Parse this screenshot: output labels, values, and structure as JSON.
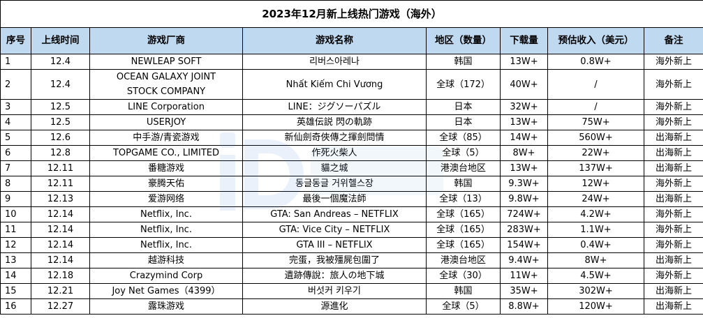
{
  "title": "2023年12月新上线热门游戏（海外）",
  "headers": [
    "序号",
    "上线时间",
    "游戏厂商",
    "游戏名称",
    "地区（数量）",
    "下载量",
    "预估收入（美元）",
    "备注"
  ],
  "rows": [
    [
      "1",
      "12.4",
      "NEWLEAP SOFT",
      "리버스아레나",
      "韩国",
      "13W+",
      "0.8W+",
      "海外新上"
    ],
    [
      "2",
      "12.4",
      "OCEAN GALAXY JOINT STOCK COMPANY",
      "Nhất Kiếm Chi Vương",
      "全球（172）",
      "40W+",
      "/",
      "海外新上"
    ],
    [
      "3",
      "12.5",
      "LINE Corporation",
      "LINE：ジグソーパズル",
      "日本",
      "32W+",
      "/",
      "海外新上"
    ],
    [
      "4",
      "12.5",
      "USERJOY",
      "英雄伝説 閃の軌跡",
      "日本",
      "13W+",
      "75W+",
      "海外新上"
    ],
    [
      "5",
      "12.6",
      "中手游/青瓷游戏",
      "新仙劍奇俠傳之揮劍問情",
      "全球（85）",
      "14W+",
      "560W+",
      "出海新上"
    ],
    [
      "6",
      "12.8",
      "TOPGAME CO., LIMITED",
      "作死火柴人",
      "全球（5）",
      "8W+",
      "22W+",
      "出海新上"
    ],
    [
      "7",
      "12.11",
      "番糖游戏",
      "貓之城",
      "港澳台地区",
      "13W+",
      "137W+",
      "出海新上"
    ],
    [
      "8",
      "12.11",
      "豪腾天佑",
      "동글동글 거위헬스장",
      "韩国",
      "9.3W+",
      "12W+",
      "海外新上"
    ],
    [
      "9",
      "12.13",
      "爱游网络",
      "最後一個魔法師",
      "全球（13）",
      "9.8W+",
      "24W+",
      "出海新上"
    ],
    [
      "10",
      "12.14",
      "Netflix, Inc.",
      "GTA: San Andreas – NETFLIX",
      "全球（165）",
      "724W+",
      "4.2W+",
      "海外新上"
    ],
    [
      "11",
      "12.14",
      "Netflix, Inc.",
      "GTA: Vice City – NETFLIX",
      "全球（165）",
      "283W+",
      "1.1W+",
      "海外新上"
    ],
    [
      "12",
      "12.14",
      "Netflix, Inc.",
      "GTA III – NETFLIX",
      "全球（165）",
      "154W+",
      "0.4W+",
      "海外新上"
    ],
    [
      "13",
      "12.14",
      "越游科技",
      "完蛋，我被殭屍包圍了",
      "港澳台地区",
      "9.4W+",
      "8W+",
      "出海新上"
    ],
    [
      "14",
      "12.18",
      "Crazymind Corp",
      "遺跡傳說：旅人の地下城",
      "全球（30）",
      "11W+",
      "4.5W+",
      "海外新上"
    ],
    [
      "15",
      "12.21",
      "Joy Net Games（4399）",
      "버섯커 키우기",
      "韩国",
      "35W+",
      "302W+",
      "出海新上"
    ],
    [
      "16",
      "12.27",
      "露珠游戏",
      "源進化",
      "全球（5）",
      "8.8W+",
      "120W+",
      "出海新上"
    ]
  ],
  "watermark_color": "#3a7fd5",
  "header_bg": "#bfd9f1"
}
